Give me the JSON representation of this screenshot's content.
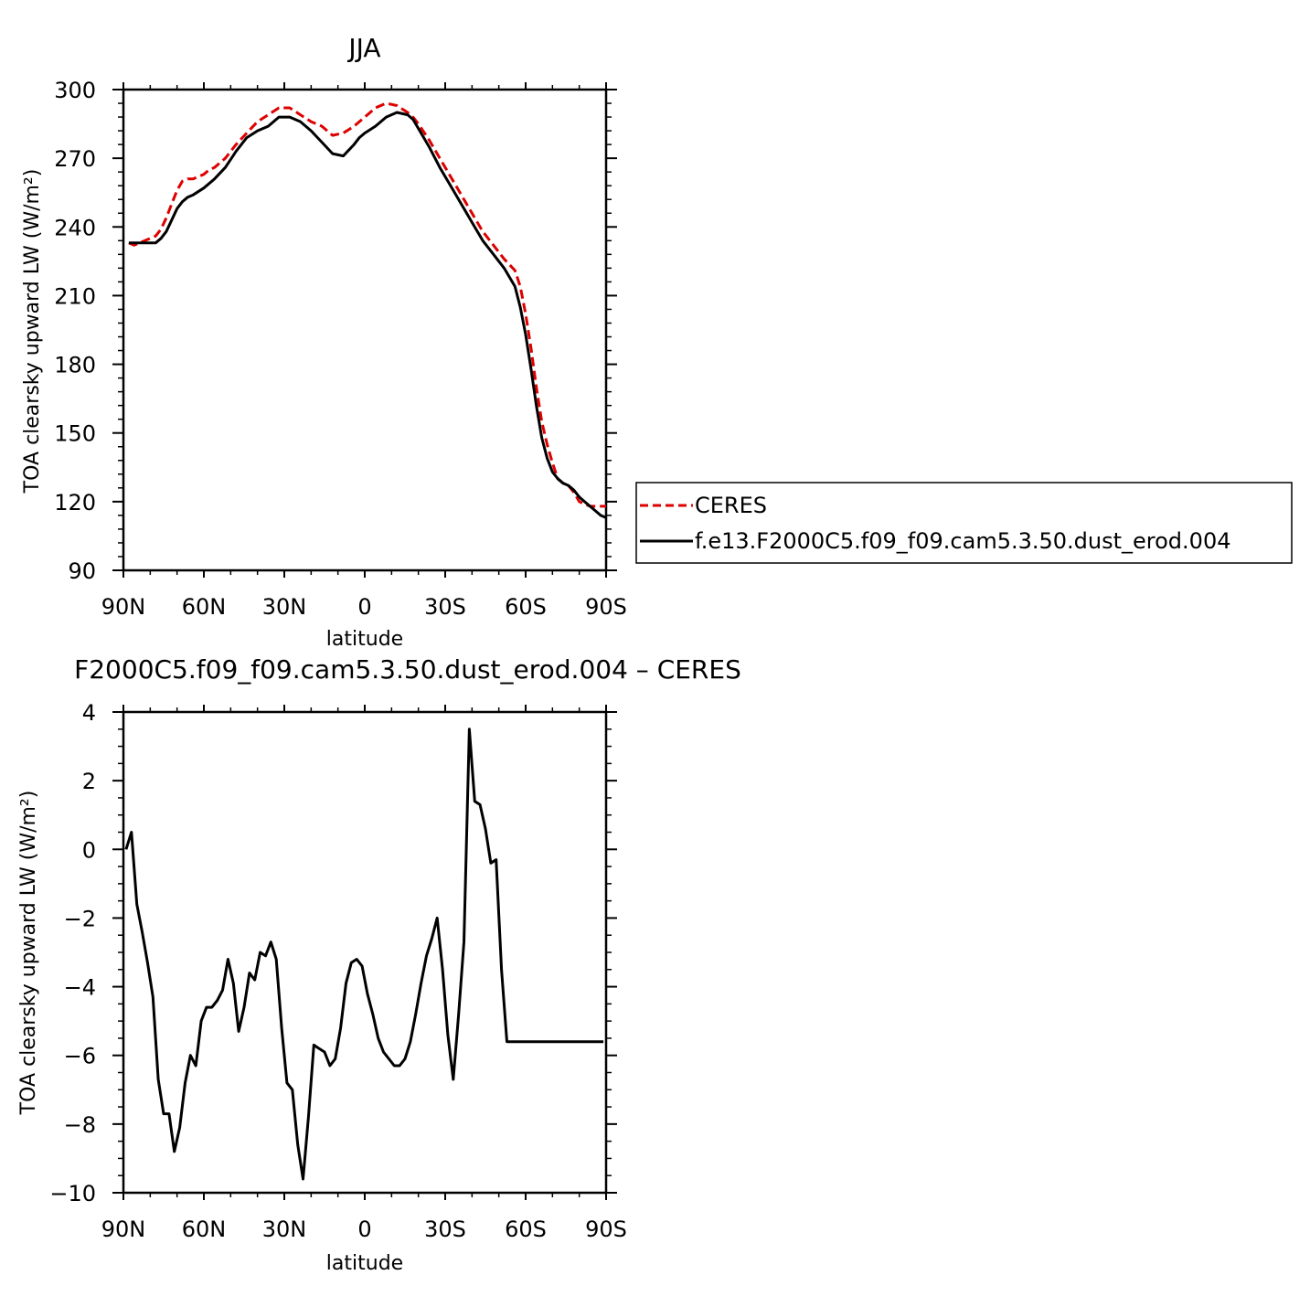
{
  "chart_data": [
    {
      "type": "line",
      "title": "JJA",
      "xlabel": "latitude",
      "ylabel": "TOA clearsky upward LW (W/m²)",
      "xlim": [
        90,
        -90
      ],
      "ylim": [
        90,
        300
      ],
      "xticks": [
        90,
        60,
        30,
        0,
        -30,
        -60,
        -90
      ],
      "xtick_labels": [
        "90N",
        "60N",
        "30N",
        "0",
        "30S",
        "60S",
        "90S"
      ],
      "yticks": [
        90,
        120,
        150,
        180,
        210,
        240,
        270,
        300
      ],
      "ytick_labels": [
        "90",
        "120",
        "150",
        "180",
        "210",
        "240",
        "270",
        "300"
      ],
      "legend_position": "right",
      "series": [
        {
          "name": "CERES",
          "color": "#dd0000",
          "dash": true,
          "x": [
            88,
            86,
            84,
            82,
            80,
            78,
            76,
            74,
            72,
            70,
            68,
            66,
            64,
            60,
            58,
            56,
            52,
            48,
            44,
            40,
            36,
            32,
            28,
            24,
            20,
            16,
            12,
            8,
            4,
            2,
            0,
            -4,
            -8,
            -12,
            -16,
            -18,
            -20,
            -24,
            -28,
            -32,
            -36,
            -40,
            -44,
            -48,
            -52,
            -56,
            -58,
            -60,
            -62,
            -64,
            -66,
            -68,
            -70,
            -72,
            -74,
            -76,
            -78,
            -80,
            -82,
            -84,
            -86,
            -88,
            -90
          ],
          "y": [
            233,
            232,
            233,
            234,
            235,
            236,
            239,
            244,
            250,
            256,
            260,
            261,
            261,
            263,
            265,
            266,
            270,
            276,
            281,
            286,
            289,
            292,
            292,
            289,
            286,
            284,
            280,
            281,
            284,
            286,
            288,
            292,
            294,
            293,
            290,
            288,
            285,
            278,
            270,
            262,
            254,
            246,
            238,
            232,
            226,
            221,
            214,
            202,
            187,
            170,
            155,
            145,
            137,
            130,
            128,
            127,
            124,
            120,
            119,
            118,
            118,
            118,
            118
          ]
        },
        {
          "name": "f.e13.F2000C5.f09_f09.cam5.3.50.dust_erod.004",
          "color": "#000000",
          "dash": false,
          "x": [
            88,
            86,
            84,
            82,
            80,
            78,
            76,
            74,
            72,
            70,
            68,
            66,
            64,
            60,
            58,
            56,
            52,
            48,
            44,
            40,
            36,
            32,
            28,
            24,
            20,
            16,
            12,
            8,
            4,
            2,
            0,
            -4,
            -8,
            -12,
            -16,
            -18,
            -20,
            -24,
            -28,
            -32,
            -36,
            -40,
            -44,
            -48,
            -52,
            -56,
            -58,
            -60,
            -62,
            -64,
            -66,
            -68,
            -70,
            -72,
            -74,
            -76,
            -78,
            -80,
            -82,
            -84,
            -86,
            -88,
            -90
          ],
          "y": [
            233,
            233,
            233,
            233,
            233,
            233,
            235,
            238,
            243,
            248,
            251,
            253,
            254,
            257,
            259,
            261,
            266,
            273,
            279,
            282,
            284,
            288,
            288,
            286,
            282,
            277,
            272,
            271,
            276,
            279,
            281,
            284,
            288,
            290,
            289,
            287,
            283,
            275,
            266,
            258,
            250,
            242,
            234,
            228,
            222,
            214,
            205,
            193,
            178,
            162,
            148,
            139,
            133,
            130,
            128,
            127,
            125,
            122,
            120,
            118,
            116,
            114,
            113
          ]
        }
      ]
    },
    {
      "type": "line",
      "title": "F2000C5.f09_f09.cam5.3.50.dust_erod.004 – CERES",
      "xlabel": "latitude",
      "ylabel": "TOA clearsky upward LW (W/m²)",
      "xlim": [
        90,
        -90
      ],
      "ylim": [
        -10,
        4
      ],
      "xticks": [
        90,
        60,
        30,
        0,
        -30,
        -60,
        -90
      ],
      "xtick_labels": [
        "90N",
        "60N",
        "30N",
        "0",
        "30S",
        "60S",
        "90S"
      ],
      "yticks": [
        -10,
        -8,
        -6,
        -4,
        -2,
        0,
        2,
        4
      ],
      "ytick_labels": [
        "−10",
        "−8",
        "−6",
        "−4",
        "−2",
        "0",
        "2",
        "4"
      ],
      "series": [
        {
          "color": "#000000",
          "dash": false,
          "x": [
            89,
            87,
            85,
            83,
            81,
            79,
            77,
            75,
            73,
            71,
            69,
            67,
            65,
            63,
            61,
            59,
            57,
            55,
            53,
            51,
            49,
            47,
            45,
            43,
            41,
            39,
            37,
            35,
            33,
            31,
            29,
            27,
            25,
            23,
            21,
            19,
            17,
            15,
            13,
            11,
            9,
            7,
            5,
            3,
            1,
            -1,
            -3,
            -5,
            -7,
            -9,
            -11,
            -13,
            -15,
            -17,
            -19,
            -21,
            -23,
            -25,
            -27,
            -29,
            -31,
            -33,
            -35,
            -37,
            -39,
            -41,
            -43,
            -45,
            -47,
            -49,
            -51,
            -53,
            -55,
            -57,
            -59,
            -61,
            -63,
            -65,
            -67,
            -69,
            -71,
            -73,
            -75,
            -77,
            -79,
            -81,
            -83,
            -85,
            -87,
            -89
          ],
          "y": [
            0.0,
            0.5,
            -1.6,
            -2.4,
            -3.3,
            -4.3,
            -6.7,
            -7.7,
            -7.7,
            -8.8,
            -8.1,
            -6.8,
            -6.0,
            -6.3,
            -5.0,
            -4.6,
            -4.6,
            -4.4,
            -4.1,
            -3.2,
            -3.9,
            -5.3,
            -4.6,
            -3.6,
            -3.8,
            -3.0,
            -3.1,
            -2.7,
            -3.2,
            -5.2,
            -6.8,
            -7.0,
            -8.6,
            -9.6,
            -7.8,
            -5.7,
            -5.8,
            -5.9,
            -6.3,
            -6.1,
            -5.2,
            -3.9,
            -3.3,
            -3.2,
            -3.4,
            -4.2,
            -4.8,
            -5.5,
            -5.9,
            -6.1,
            -6.3,
            -6.3,
            -6.1,
            -5.6,
            -4.8,
            -3.9,
            -3.1,
            -2.6,
            -2.0,
            -3.5,
            -5.4,
            -6.7,
            -4.8,
            -2.7,
            3.5,
            1.4,
            1.3,
            0.6,
            -0.4,
            -0.3,
            -3.5,
            -5.6,
            -5.6,
            -5.6,
            -5.6,
            -5.6,
            -5.6,
            -5.6,
            -5.6,
            -5.6,
            -5.6,
            -5.6,
            -5.6,
            -5.6,
            -5.6,
            -5.6,
            -5.6,
            -5.6,
            -5.6,
            -5.6
          ]
        }
      ]
    }
  ]
}
